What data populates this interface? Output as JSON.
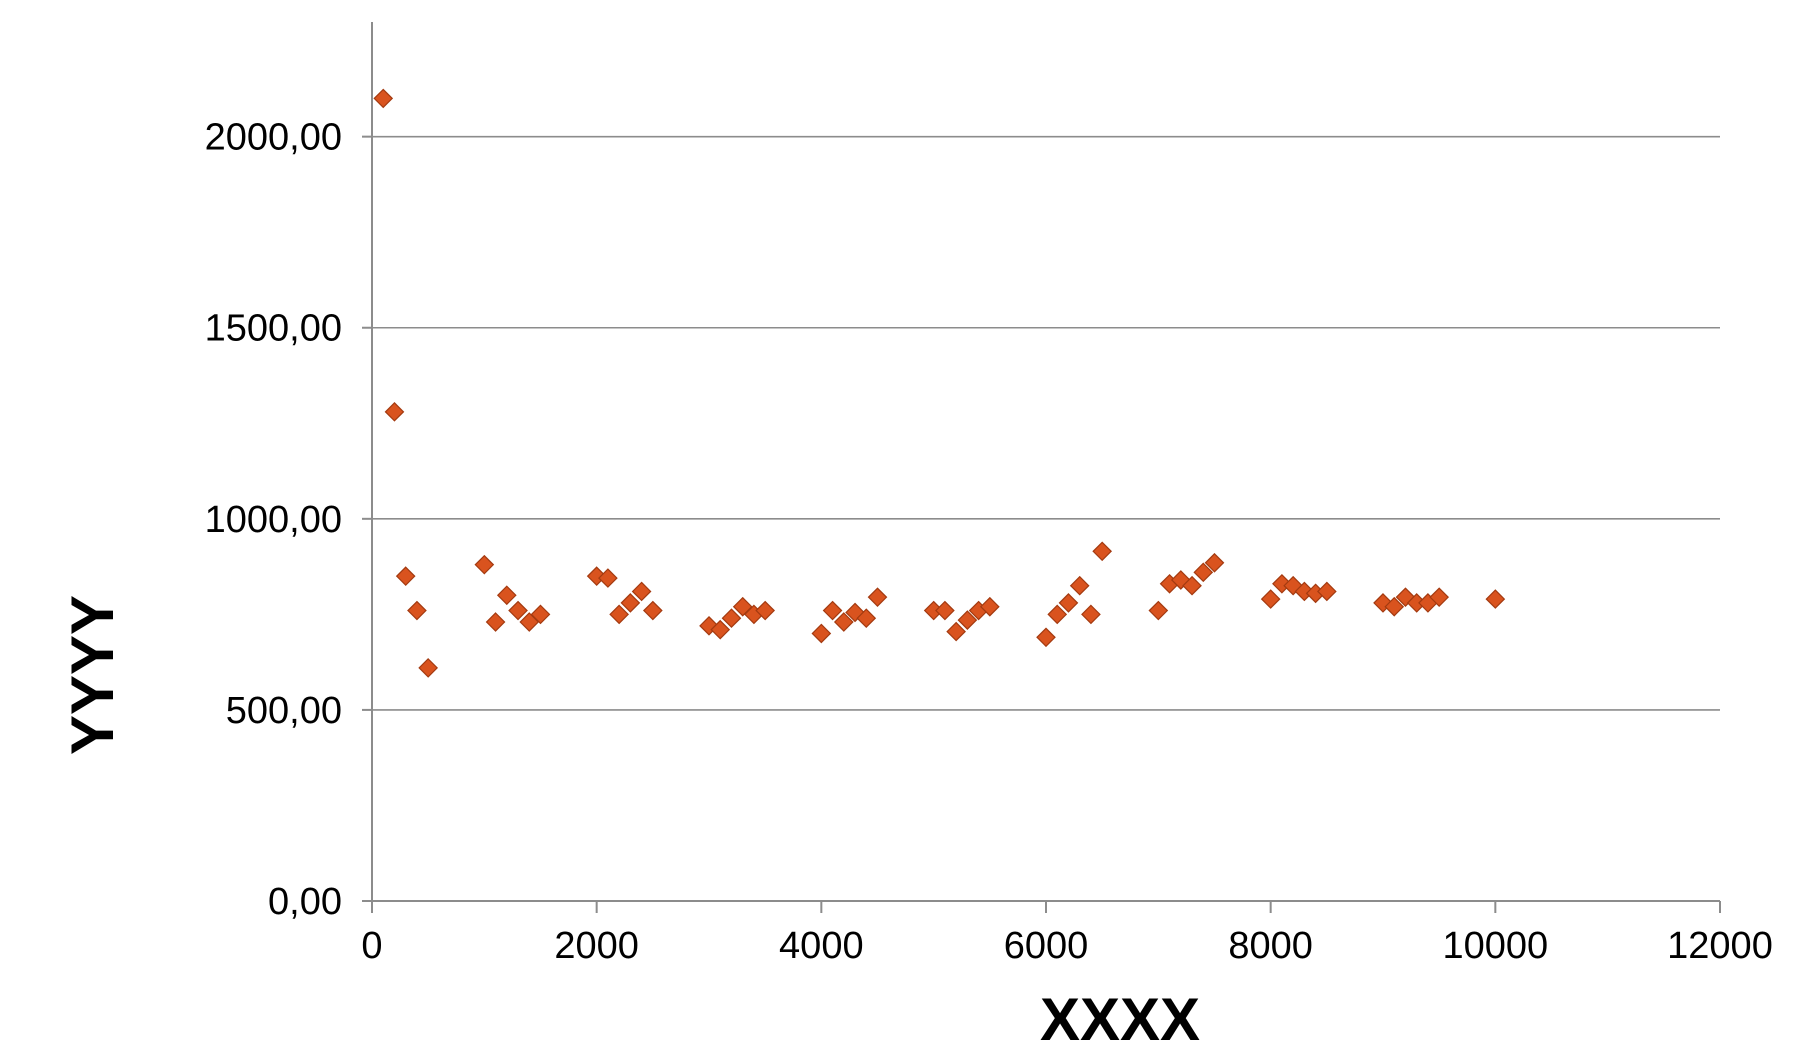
{
  "chart_data": {
    "type": "scatter",
    "title": "",
    "xlabel": "XXXX",
    "ylabel": "YYYY",
    "xlim": [
      0,
      12000
    ],
    "ylim": [
      0,
      2300
    ],
    "x_ticks": [
      0,
      2000,
      4000,
      6000,
      8000,
      10000,
      12000
    ],
    "x_tick_labels": [
      "0",
      "2000",
      "4000",
      "6000",
      "8000",
      "10000",
      "12000"
    ],
    "y_ticks": [
      0,
      500,
      1000,
      1500,
      2000
    ],
    "y_tick_labels": [
      "0,00",
      "500,00",
      "1000,00",
      "1500,00",
      "2000,00"
    ],
    "grid": "horizontal",
    "legend": "none",
    "marker": "diamond",
    "colors": {
      "marker_fill": "#d9531e",
      "marker_stroke": "#a33a10",
      "grid": "#8c8c8c",
      "axis": "#8c8c8c"
    },
    "series": [
      {
        "points": [
          [
            100,
            2100
          ],
          [
            200,
            1280
          ],
          [
            300,
            850
          ],
          [
            400,
            760
          ],
          [
            500,
            610
          ],
          [
            1000,
            880
          ],
          [
            1100,
            730
          ],
          [
            1200,
            800
          ],
          [
            1300,
            760
          ],
          [
            1400,
            730
          ],
          [
            1500,
            750
          ],
          [
            2000,
            850
          ],
          [
            2100,
            845
          ],
          [
            2200,
            750
          ],
          [
            2300,
            780
          ],
          [
            2400,
            810
          ],
          [
            2500,
            760
          ],
          [
            3000,
            720
          ],
          [
            3100,
            710
          ],
          [
            3200,
            740
          ],
          [
            3300,
            770
          ],
          [
            3400,
            750
          ],
          [
            3500,
            760
          ],
          [
            4000,
            700
          ],
          [
            4100,
            760
          ],
          [
            4200,
            730
          ],
          [
            4300,
            755
          ],
          [
            4400,
            740
          ],
          [
            4500,
            795
          ],
          [
            5000,
            760
          ],
          [
            5100,
            760
          ],
          [
            5200,
            705
          ],
          [
            5300,
            735
          ],
          [
            5400,
            760
          ],
          [
            5500,
            770
          ],
          [
            6000,
            690
          ],
          [
            6100,
            750
          ],
          [
            6200,
            780
          ],
          [
            6300,
            825
          ],
          [
            6400,
            750
          ],
          [
            6500,
            915
          ],
          [
            7000,
            760
          ],
          [
            7100,
            830
          ],
          [
            7200,
            840
          ],
          [
            7300,
            825
          ],
          [
            7400,
            860
          ],
          [
            7500,
            885
          ],
          [
            8000,
            790
          ],
          [
            8100,
            830
          ],
          [
            8200,
            825
          ],
          [
            8300,
            810
          ],
          [
            8400,
            805
          ],
          [
            8500,
            810
          ],
          [
            9000,
            780
          ],
          [
            9100,
            770
          ],
          [
            9200,
            795
          ],
          [
            9300,
            780
          ],
          [
            9400,
            780
          ],
          [
            9500,
            795
          ],
          [
            10000,
            790
          ]
        ]
      }
    ]
  }
}
